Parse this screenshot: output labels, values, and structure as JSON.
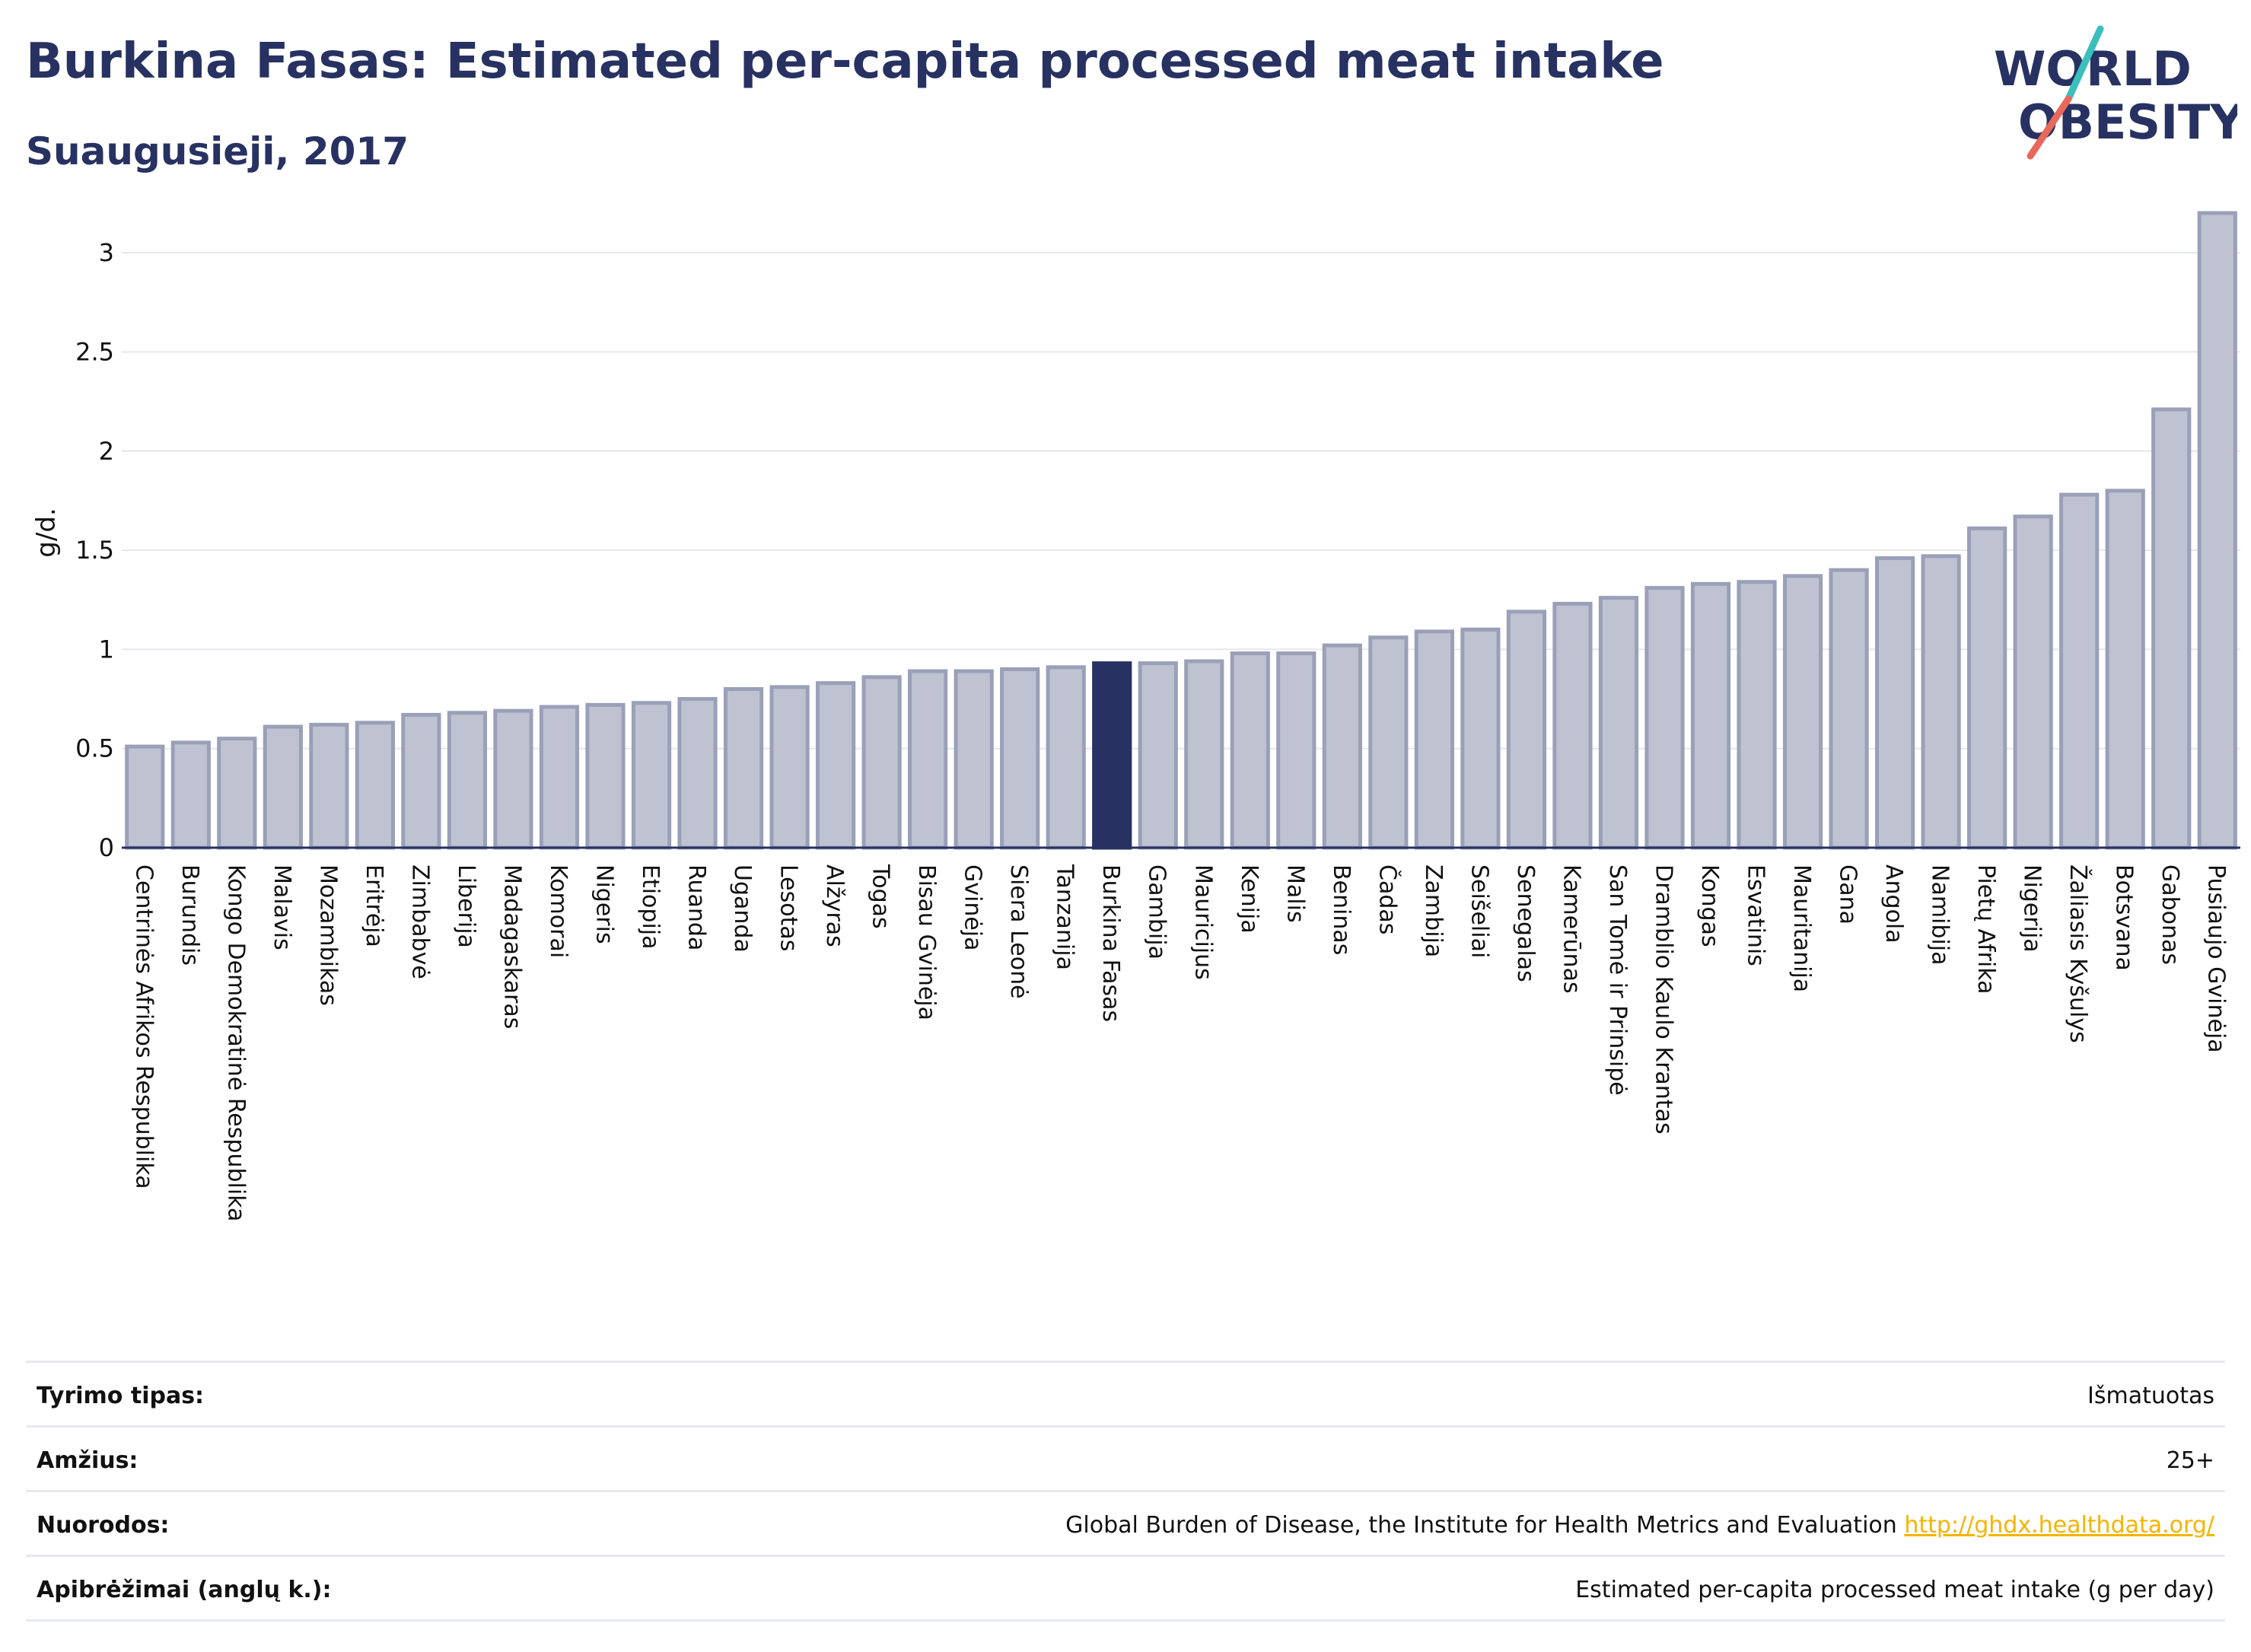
{
  "header": {
    "title": "Burkina Fasas: Estimated per-capita processed meat intake",
    "subtitle": "Suaugusieji, 2017"
  },
  "logo": {
    "line1": "WORLD",
    "line2": "OBESITY",
    "colors": {
      "text": "#273262",
      "teal": "#3bbfbd",
      "coral": "#e8685a"
    }
  },
  "colors": {
    "bar_fill": "#bfc3d1",
    "bar_stroke": "#9aa0b8",
    "highlight": "#273262",
    "grid": "#e6e7ec",
    "axis": "#273262"
  },
  "chart_data": {
    "type": "bar",
    "ylabel": "g/d.",
    "ylim": [
      0,
      3.2
    ],
    "yticks": [
      0,
      0.5,
      1,
      1.5,
      2,
      2.5,
      3
    ],
    "ytick_labels": [
      "0",
      "0.5",
      "1",
      "1.5",
      "2",
      "2.5",
      "3"
    ],
    "grid": true,
    "highlight": "Burkina Fasas",
    "categories": [
      "Centrinės Afrikos Respublika",
      "Burundis",
      "Kongo Demokratinė Respublika",
      "Malavis",
      "Mozambikas",
      "Eritrėja",
      "Zimbabvė",
      "Liberija",
      "Madagaskaras",
      "Komorai",
      "Nigeris",
      "Etiopija",
      "Ruanda",
      "Uganda",
      "Lesotas",
      "Alžyras",
      "Togas",
      "Bisau Gvinėja",
      "Gvinėja",
      "Siera Leonė",
      "Tanzanija",
      "Burkina Fasas",
      "Gambija",
      "Mauricijus",
      "Kenija",
      "Malis",
      "Beninas",
      "Čadas",
      "Zambija",
      "Seišeliai",
      "Senegalas",
      "Kamerūnas",
      "San Tomė ir Prinsipė",
      "Dramblio Kaulo Krantas",
      "Kongas",
      "Esvatinis",
      "Mauritanija",
      "Gana",
      "Angola",
      "Namibija",
      "Pietų Afrika",
      "Nigerija",
      "Žaliasis Kyšulys",
      "Botsvana",
      "Gabonas",
      "Pusiaujo Gvinėja"
    ],
    "values": [
      0.51,
      0.53,
      0.55,
      0.61,
      0.62,
      0.63,
      0.67,
      0.68,
      0.69,
      0.71,
      0.72,
      0.73,
      0.75,
      0.8,
      0.81,
      0.83,
      0.86,
      0.89,
      0.89,
      0.9,
      0.91,
      0.93,
      0.93,
      0.94,
      0.98,
      0.98,
      1.02,
      1.06,
      1.09,
      1.1,
      1.19,
      1.23,
      1.26,
      1.31,
      1.33,
      1.34,
      1.37,
      1.4,
      1.46,
      1.47,
      1.61,
      1.67,
      1.78,
      1.8,
      2.21,
      3.2
    ]
  },
  "info": [
    {
      "label": "Tyrimo tipas:",
      "value": "Išmatuotas"
    },
    {
      "label": "Amžius:",
      "value": "25+"
    },
    {
      "label": "Nuorodos:",
      "value": "Global Burden of Disease, the Institute for Health Metrics and Evaluation ",
      "link": "http://ghdx.healthdata.org/"
    },
    {
      "label": "Apibrėžimai (anglų k.):",
      "value": "Estimated per-capita processed meat intake (g per day)"
    }
  ]
}
